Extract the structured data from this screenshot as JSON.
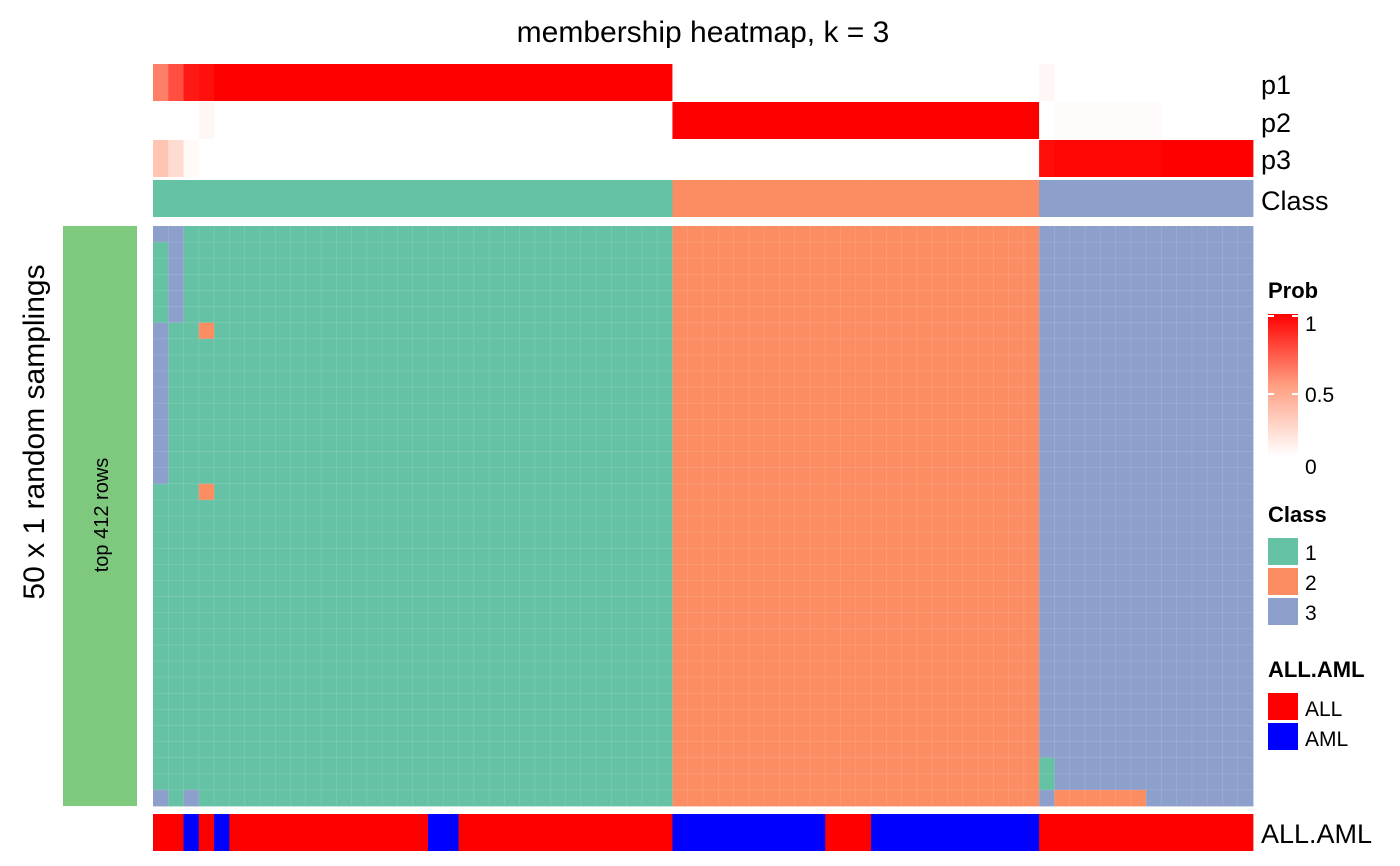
{
  "chart_data": {
    "type": "heatmap",
    "title": "membership heatmap, k = 3",
    "n_columns": 72,
    "n_rows": 36,
    "row_title": "50 x 1 random samplings",
    "row_group_label": "top 412 rows",
    "row_group_color": "#7FC97F",
    "colors": {
      "class": {
        "1": "#66C2A5",
        "2": "#FC8D62",
        "3": "#8DA0CB"
      },
      "all_aml": {
        "ALL": "#FF0000",
        "AML": "#0000FF"
      },
      "prob_low": "#FFFFFF",
      "prob_mid": "#FF9E81",
      "prob_high": "#FF0000"
    },
    "class": [
      1,
      1,
      1,
      1,
      1,
      1,
      1,
      1,
      1,
      1,
      1,
      1,
      1,
      1,
      1,
      1,
      1,
      1,
      1,
      1,
      1,
      1,
      1,
      1,
      1,
      1,
      1,
      1,
      1,
      1,
      1,
      1,
      1,
      1,
      2,
      2,
      2,
      2,
      2,
      2,
      2,
      2,
      2,
      2,
      2,
      2,
      2,
      2,
      2,
      2,
      2,
      2,
      2,
      2,
      2,
      2,
      2,
      2,
      3,
      3,
      3,
      3,
      3,
      3,
      3,
      3,
      3,
      3,
      3,
      3,
      3,
      3
    ],
    "p1": [
      0.6,
      0.75,
      0.92,
      0.95,
      1,
      1,
      1,
      1,
      1,
      1,
      1,
      1,
      1,
      1,
      1,
      1,
      1,
      1,
      1,
      1,
      1,
      1,
      1,
      1,
      1,
      1,
      1,
      1,
      1,
      1,
      1,
      1,
      1,
      1,
      0,
      0,
      0,
      0,
      0,
      0,
      0,
      0,
      0,
      0,
      0,
      0,
      0,
      0,
      0,
      0,
      0,
      0,
      0,
      0,
      0,
      0,
      0,
      0,
      0.04,
      0,
      0,
      0,
      0,
      0,
      0,
      0,
      0,
      0,
      0,
      0,
      0,
      0
    ],
    "p2": [
      0,
      0,
      0,
      0.04,
      0,
      0,
      0,
      0,
      0,
      0,
      0,
      0,
      0,
      0,
      0,
      0,
      0,
      0,
      0,
      0,
      0,
      0,
      0,
      0,
      0,
      0,
      0,
      0,
      0,
      0,
      0,
      0,
      0,
      0,
      1,
      1,
      1,
      1,
      1,
      1,
      1,
      1,
      1,
      1,
      1,
      1,
      1,
      1,
      1,
      1,
      1,
      1,
      1,
      1,
      1,
      1,
      1,
      1,
      0,
      0.02,
      0.02,
      0.02,
      0.02,
      0.02,
      0.02,
      0.02,
      0,
      0,
      0,
      0,
      0,
      0
    ],
    "p3": [
      0.3,
      0.18,
      0.03,
      0,
      0,
      0,
      0,
      0,
      0,
      0,
      0,
      0,
      0,
      0,
      0,
      0,
      0,
      0,
      0,
      0,
      0,
      0,
      0,
      0,
      0,
      0,
      0,
      0,
      0,
      0,
      0,
      0,
      0,
      0,
      0,
      0,
      0,
      0,
      0,
      0,
      0,
      0,
      0,
      0,
      0,
      0,
      0,
      0,
      0,
      0,
      0,
      0,
      0,
      0,
      0,
      0,
      0,
      0,
      0.96,
      0.98,
      0.98,
      0.98,
      0.98,
      0.98,
      0.98,
      0.98,
      1,
      1,
      1,
      1,
      1,
      1
    ],
    "all_aml": [
      "ALL",
      "ALL",
      "AML",
      "ALL",
      "AML",
      "ALL",
      "ALL",
      "ALL",
      "ALL",
      "ALL",
      "ALL",
      "ALL",
      "ALL",
      "ALL",
      "ALL",
      "ALL",
      "ALL",
      "ALL",
      "AML",
      "AML",
      "ALL",
      "ALL",
      "ALL",
      "ALL",
      "ALL",
      "ALL",
      "ALL",
      "ALL",
      "ALL",
      "ALL",
      "ALL",
      "ALL",
      "ALL",
      "ALL",
      "AML",
      "AML",
      "AML",
      "AML",
      "AML",
      "AML",
      "AML",
      "AML",
      "AML",
      "AML",
      "ALL",
      "ALL",
      "ALL",
      "AML",
      "AML",
      "AML",
      "AML",
      "AML",
      "AML",
      "AML",
      "AML",
      "AML",
      "AML",
      "AML",
      "ALL",
      "ALL",
      "ALL",
      "ALL",
      "ALL",
      "ALL",
      "ALL",
      "ALL",
      "ALL",
      "ALL",
      "ALL",
      "ALL",
      "ALL",
      "ALL"
    ],
    "membership_exceptions": [
      {
        "row": 0,
        "col": 0,
        "class": 3
      },
      {
        "row": 1,
        "col": 0,
        "class": 1
      },
      {
        "row": 0,
        "col": 1,
        "class": 3
      },
      {
        "row": 1,
        "col": 1,
        "class": 3
      },
      {
        "row": 2,
        "col": 1,
        "class": 3
      },
      {
        "row": 3,
        "col": 1,
        "class": 3
      },
      {
        "row": 4,
        "col": 1,
        "class": 3
      },
      {
        "row": 5,
        "col": 1,
        "class": 3
      },
      {
        "row": 6,
        "col": 0,
        "class": 3
      },
      {
        "row": 7,
        "col": 0,
        "class": 3
      },
      {
        "row": 8,
        "col": 0,
        "class": 3
      },
      {
        "row": 9,
        "col": 0,
        "class": 3
      },
      {
        "row": 10,
        "col": 0,
        "class": 3
      },
      {
        "row": 11,
        "col": 0,
        "class": 3
      },
      {
        "row": 12,
        "col": 0,
        "class": 3
      },
      {
        "row": 13,
        "col": 0,
        "class": 3
      },
      {
        "row": 14,
        "col": 0,
        "class": 3
      },
      {
        "row": 15,
        "col": 0,
        "class": 3
      },
      {
        "row": 6,
        "col": 3,
        "class": 2
      },
      {
        "row": 16,
        "col": 3,
        "class": 2
      },
      {
        "row": 33,
        "col": 58,
        "class": 1
      },
      {
        "row": 34,
        "col": 58,
        "class": 1
      },
      {
        "row": 35,
        "col": 0,
        "class": 3
      },
      {
        "row": 35,
        "col": 2,
        "class": 3
      },
      {
        "row": 35,
        "col": 59,
        "class": 2
      },
      {
        "row": 35,
        "col": 60,
        "class": 2
      },
      {
        "row": 35,
        "col": 61,
        "class": 2
      },
      {
        "row": 35,
        "col": 62,
        "class": 2
      },
      {
        "row": 35,
        "col": 63,
        "class": 2
      },
      {
        "row": 35,
        "col": 64,
        "class": 2
      }
    ],
    "annotation_labels": {
      "p1": "p1",
      "p2": "p2",
      "p3": "p3",
      "class": "Class",
      "all_aml": "ALL.AML"
    },
    "legends": {
      "prob": {
        "title": "Prob",
        "ticks": [
          "1",
          "0.5",
          "0"
        ]
      },
      "class": {
        "title": "Class",
        "entries": [
          "1",
          "2",
          "3"
        ]
      },
      "all_aml": {
        "title": "ALL.AML",
        "entries": [
          "ALL",
          "AML"
        ]
      }
    }
  }
}
